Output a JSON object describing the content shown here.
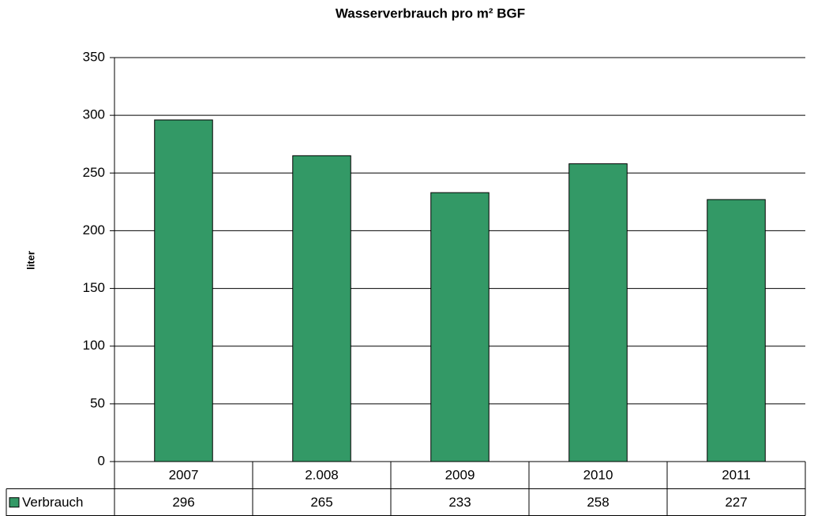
{
  "chart_data": {
    "type": "bar",
    "title": "Wasserverbrauch pro m² BGF",
    "y_label": "liter",
    "categories": [
      "2007",
      "2.008",
      "2009",
      "2010",
      "2011"
    ],
    "series": [
      {
        "name": "Verbrauch",
        "color": "#339966",
        "values": [
          296,
          265,
          233,
          258,
          227
        ]
      }
    ],
    "ylim": [
      0,
      350
    ],
    "yticks": [
      0,
      50,
      100,
      150,
      200,
      250,
      300,
      350
    ],
    "grid": true,
    "data_table": true
  }
}
